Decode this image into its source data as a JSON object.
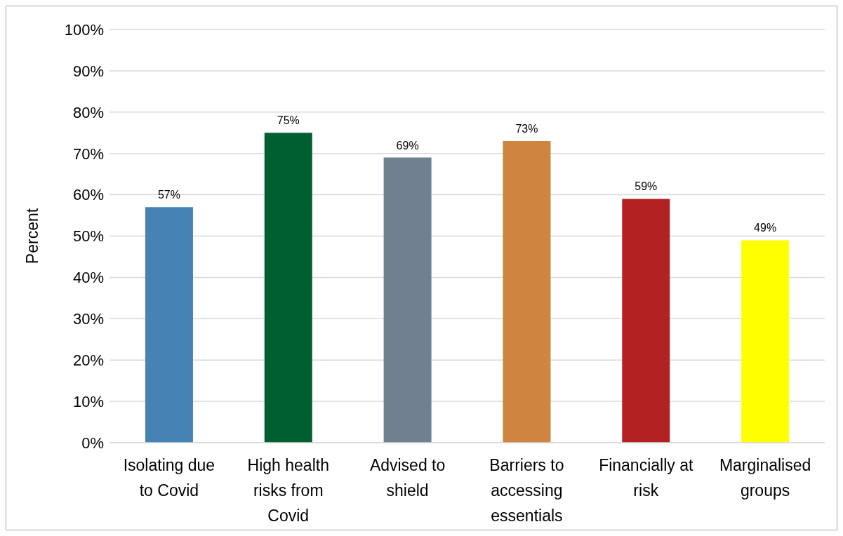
{
  "chart_data": {
    "type": "bar",
    "ylabel": "Percent",
    "categories": [
      "Isolating due to Covid",
      "High health risks from Covid",
      "Advised to shield",
      "Barriers to accessing essentials",
      "Financially at risk",
      "Marginalised groups"
    ],
    "values": [
      57,
      75,
      69,
      73,
      59,
      49
    ],
    "value_labels": [
      "57%",
      "75%",
      "69%",
      "73%",
      "59%",
      "49%"
    ],
    "colors": [
      "#4682b4",
      "#005f2e",
      "#708090",
      "#cd853f",
      "#b22222",
      "#ffff00"
    ],
    "ylim": [
      0,
      100
    ],
    "yticks": [
      {
        "value": 0,
        "label": "0%"
      },
      {
        "value": 10,
        "label": "10%"
      },
      {
        "value": 20,
        "label": "20%"
      },
      {
        "value": 30,
        "label": "30%"
      },
      {
        "value": 40,
        "label": "40%"
      },
      {
        "value": 50,
        "label": "50%"
      },
      {
        "value": 60,
        "label": "60%"
      },
      {
        "value": 70,
        "label": "70%"
      },
      {
        "value": 80,
        "label": "80%"
      },
      {
        "value": 90,
        "label": "90%"
      },
      {
        "value": 100,
        "label": "100%"
      }
    ],
    "grid": "y",
    "legend": false
  }
}
